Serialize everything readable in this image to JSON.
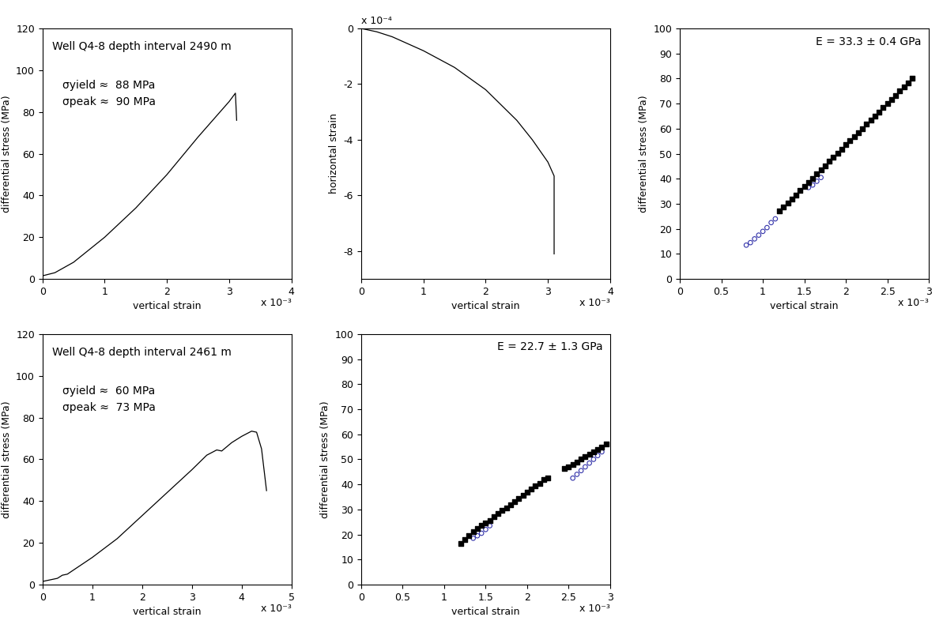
{
  "chart_data": [
    {
      "type": "line",
      "annotations": [
        "Well Q4-8 depth interval 2490 m",
        "σyield ≈  88 MPa",
        "σpeak ≈  90 MPa"
      ],
      "x_label": "vertical strain",
      "y_label": "differential stress (MPa)",
      "x_multiplier": "x 10⁻³",
      "xlim": [
        0,
        4
      ],
      "xticks": [
        0,
        1,
        2,
        3,
        4
      ],
      "ylim": [
        0,
        120
      ],
      "yticks": [
        0,
        20,
        40,
        60,
        80,
        100,
        120
      ],
      "series": [
        {
          "color": "#000000",
          "x": [
            0,
            0.2,
            0.5,
            1.0,
            1.5,
            2.0,
            2.5,
            3.0,
            3.1,
            3.12
          ],
          "values": [
            1.5,
            3,
            8,
            20,
            34,
            50,
            68,
            85,
            89,
            76
          ]
        }
      ]
    },
    {
      "type": "line",
      "x_label": "vertical strain",
      "y_label": "horizontal strain",
      "x_multiplier": "x 10⁻³",
      "y_multiplier": "x 10⁻⁴",
      "xlim": [
        0,
        4
      ],
      "xticks": [
        0,
        1,
        2,
        3,
        4
      ],
      "ylim": [
        -9,
        0
      ],
      "yticks": [
        0,
        -2,
        -4,
        -6,
        -8
      ],
      "series": [
        {
          "color": "#000000",
          "x": [
            0,
            0.25,
            0.5,
            0.75,
            1.0,
            1.25,
            1.5,
            1.75,
            2.0,
            2.25,
            2.5,
            2.75,
            3.0,
            3.1,
            3.1
          ],
          "values": [
            0,
            -0.12,
            -0.3,
            -0.55,
            -0.8,
            -1.1,
            -1.4,
            -1.8,
            -2.2,
            -2.75,
            -3.3,
            -4.0,
            -4.8,
            -5.3,
            -8.1
          ]
        }
      ]
    },
    {
      "type": "scatter",
      "annotations": [
        "E = 33.3 ± 0.4 GPa"
      ],
      "x_label": "vertical strain",
      "y_label": "differential stress (MPa)",
      "x_multiplier": "x 10⁻³",
      "xlim": [
        0,
        3
      ],
      "xticks": [
        0,
        0.5,
        1,
        1.5,
        2,
        2.5,
        3
      ],
      "ylim": [
        0,
        100
      ],
      "yticks": [
        0,
        10,
        20,
        30,
        40,
        50,
        60,
        70,
        80,
        90,
        100
      ],
      "series": [
        {
          "color": "#3333aa",
          "marker": "circle",
          "x": [
            0.8,
            0.85,
            0.9,
            0.95,
            1.0,
            1.05,
            1.1,
            1.15,
            1.55,
            1.6,
            1.65,
            1.7
          ],
          "values": [
            13.5,
            14.5,
            16,
            17.5,
            19,
            20.5,
            22.5,
            24,
            36.5,
            37.5,
            39,
            40.5
          ]
        },
        {
          "color": "#000000",
          "marker": "square",
          "x": [
            1.2,
            1.25,
            1.3,
            1.35,
            1.4,
            1.45,
            1.5,
            1.55,
            1.6,
            1.65,
            1.7,
            1.75,
            1.8,
            1.85,
            1.9,
            1.95,
            2.0,
            2.05,
            2.1,
            2.15,
            2.2,
            2.25,
            2.3,
            2.35,
            2.4,
            2.45,
            2.5,
            2.55,
            2.6,
            2.65,
            2.7,
            2.75,
            2.8
          ],
          "values": [
            27.0,
            28.7,
            30.3,
            32.0,
            33.6,
            35.3,
            36.9,
            38.5,
            40.2,
            41.9,
            43.6,
            45.2,
            46.9,
            48.5,
            50.2,
            51.8,
            53.5,
            55.1,
            56.8,
            58.5,
            60.1,
            61.8,
            63.4,
            65.1,
            66.7,
            68.4,
            70.0,
            71.7,
            73.3,
            75.0,
            76.7,
            78.3,
            80.0
          ]
        }
      ]
    },
    {
      "type": "line",
      "annotations": [
        "Well Q4-8 depth interval 2461 m",
        "σyield ≈  60 MPa",
        "σpeak ≈  73 MPa"
      ],
      "x_label": "vertical strain",
      "y_label": "differential stress (MPa)",
      "x_multiplier": "x 10⁻³",
      "xlim": [
        0,
        5
      ],
      "xticks": [
        0,
        1,
        2,
        3,
        4,
        5
      ],
      "ylim": [
        0,
        120
      ],
      "yticks": [
        0,
        20,
        40,
        60,
        80,
        100,
        120
      ],
      "series": [
        {
          "color": "#000000",
          "x": [
            0,
            0.3,
            0.4,
            0.5,
            1.0,
            1.5,
            2.0,
            2.5,
            3.0,
            3.3,
            3.5,
            3.6,
            3.8,
            4.0,
            4.2,
            4.3,
            4.4,
            4.5
          ],
          "values": [
            1.5,
            3,
            4.5,
            5,
            13,
            22,
            33,
            44,
            55,
            62,
            64.5,
            64,
            68,
            71,
            73.5,
            73,
            65,
            45
          ]
        }
      ]
    },
    {
      "type": "scatter",
      "annotations": [
        "E = 22.7 ± 1.3 GPa"
      ],
      "x_label": "vertical strain",
      "y_label": "differential stress (MPa)",
      "x_multiplier": "x 10⁻³",
      "xlim": [
        0,
        3
      ],
      "xticks": [
        0,
        0.5,
        1,
        1.5,
        2,
        2.5,
        3
      ],
      "ylim": [
        0,
        100
      ],
      "yticks": [
        0,
        10,
        20,
        30,
        40,
        50,
        60,
        70,
        80,
        90,
        100
      ],
      "series": [
        {
          "color": "#3333aa",
          "marker": "circle",
          "x": [
            1.35,
            1.4,
            1.45,
            1.5,
            1.55,
            2.55,
            2.6,
            2.65,
            2.7,
            2.75,
            2.8,
            2.85,
            2.9
          ],
          "values": [
            18.5,
            19.5,
            20.5,
            22,
            23.5,
            42.5,
            44,
            45.5,
            47,
            48.5,
            50,
            51.5,
            53
          ]
        },
        {
          "color": "#000000",
          "marker": "square",
          "x": [
            1.2,
            1.25,
            1.3,
            1.35,
            1.4,
            1.45,
            1.5,
            1.55,
            1.6,
            1.65,
            1.7,
            1.75,
            1.8,
            1.85,
            1.9,
            1.95,
            2.0,
            2.05,
            2.1,
            2.15,
            2.2,
            2.25,
            2.45,
            2.5,
            2.55,
            2.6,
            2.65,
            2.7,
            2.75,
            2.8,
            2.85,
            2.9,
            2.95
          ],
          "values": [
            16.5,
            18,
            19.5,
            21,
            22.5,
            23.5,
            24.5,
            25.5,
            27,
            28.5,
            29.5,
            30.5,
            32,
            33,
            34.5,
            35.5,
            37,
            38,
            39.5,
            40.5,
            42,
            42.5,
            46.5,
            47,
            48,
            49,
            50,
            51,
            52,
            53,
            54,
            55,
            56
          ]
        }
      ]
    }
  ]
}
